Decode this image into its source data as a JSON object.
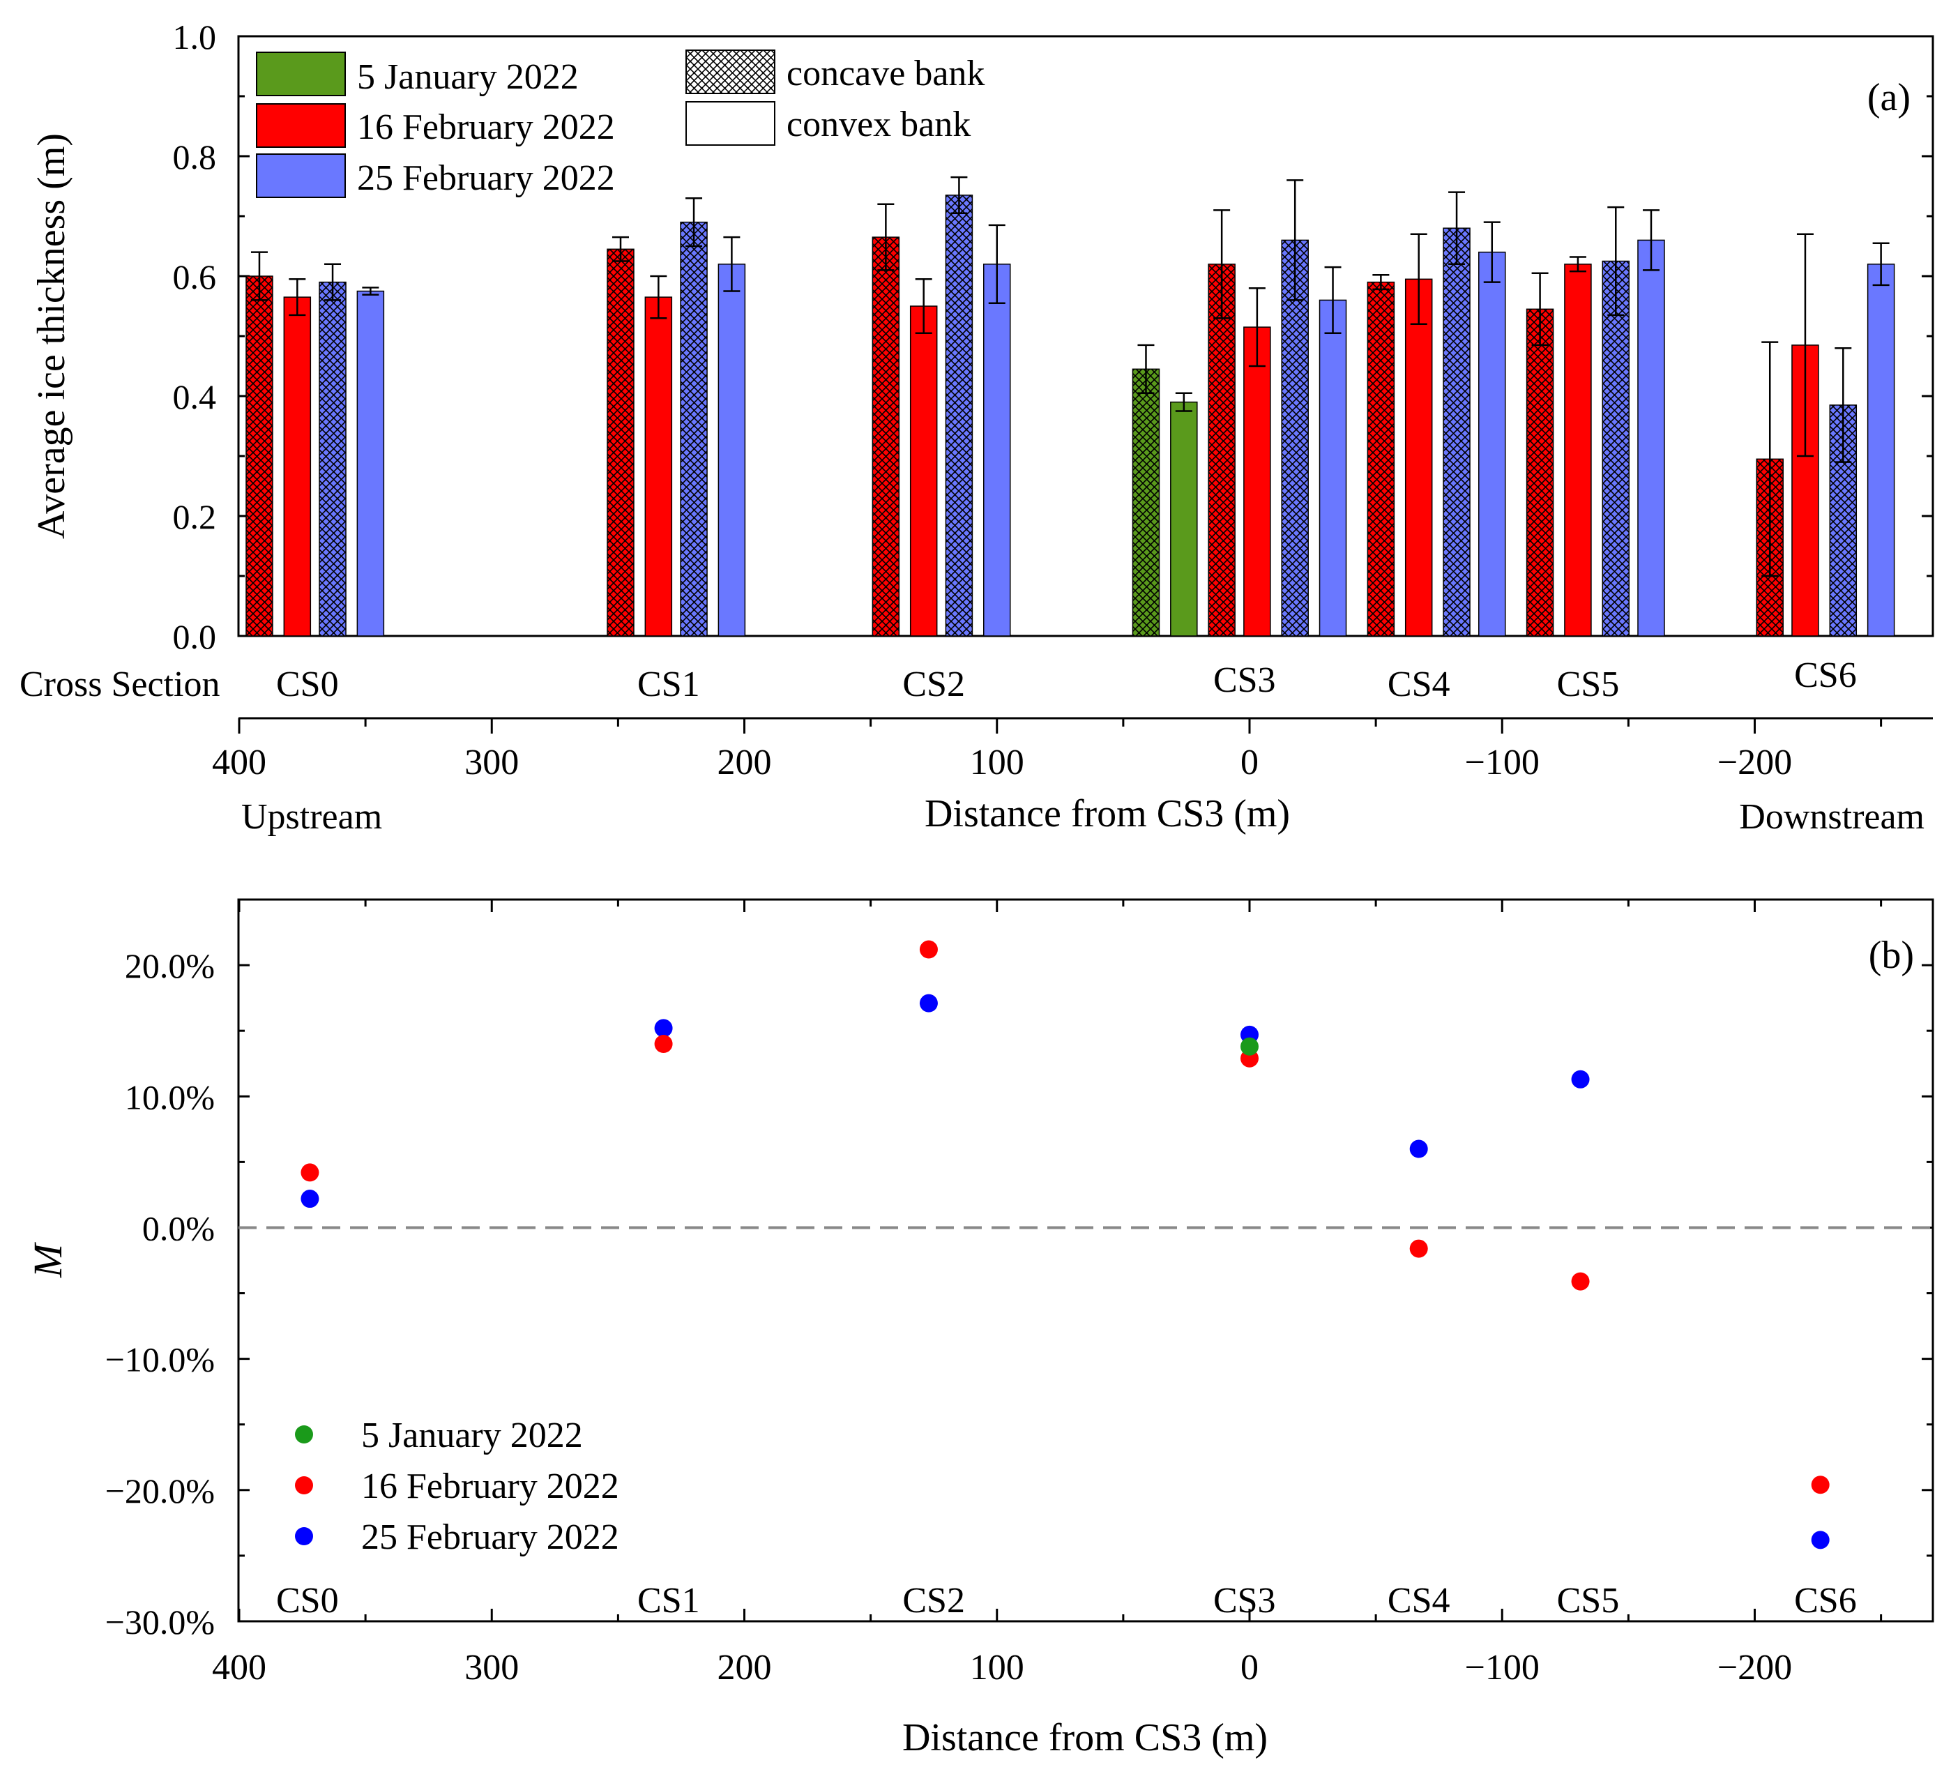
{
  "colors": {
    "jan": "#5a9a1c",
    "feb16": "#ff0000",
    "feb25": "#6a78ff",
    "jan_dot": "#1a9a1a",
    "feb16_dot": "#ff0000",
    "feb25_dot": "#0000ff",
    "zero_line": "#888888"
  },
  "chart_data": [
    {
      "type": "bar",
      "panel_label": "(a)",
      "ylabel": "Average ice thickness (m)",
      "xlabel": "Distance from CS3 (m)",
      "x_left_label": "Upstream",
      "x_right_label": "Downstream",
      "cross_section_label": "Cross Section",
      "ylim": [
        0.0,
        1.0
      ],
      "xlim": [
        400,
        -270
      ],
      "y_ticks": [
        "0.0",
        "0.2",
        "0.4",
        "0.6",
        "0.8",
        "1.0"
      ],
      "x_ticks": [
        "400",
        "300",
        "200",
        "100",
        "0",
        "−100",
        "−200"
      ],
      "legend_series": [
        "5 January 2022",
        "16 February 2022",
        "25 February 2022"
      ],
      "legend_banks": [
        "concave bank",
        "convex bank"
      ],
      "cross_sections": [
        {
          "name": "CS0",
          "x": 373
        },
        {
          "name": "CS1",
          "x": 230
        },
        {
          "name": "CS2",
          "x": 125
        },
        {
          "name": "CS3",
          "x": 2
        },
        {
          "name": "CS4",
          "x": -67
        },
        {
          "name": "CS5",
          "x": -134
        },
        {
          "name": "CS6",
          "x": -228
        }
      ],
      "bars": [
        {
          "section": "CS0",
          "x": 392,
          "date": "16 February 2022",
          "bank": "concave",
          "value": 0.6,
          "err": 0.04
        },
        {
          "section": "CS0",
          "x": 377,
          "date": "16 February 2022",
          "bank": "convex",
          "value": 0.565,
          "err": 0.03
        },
        {
          "section": "CS0",
          "x": 363,
          "date": "25 February 2022",
          "bank": "concave",
          "value": 0.59,
          "err": 0.03
        },
        {
          "section": "CS0",
          "x": 348,
          "date": "25 February 2022",
          "bank": "convex",
          "value": 0.575,
          "err": 0.006
        },
        {
          "section": "CS1",
          "x": 249,
          "date": "16 February 2022",
          "bank": "concave",
          "value": 0.645,
          "err": 0.02
        },
        {
          "section": "CS1",
          "x": 234,
          "date": "16 February 2022",
          "bank": "convex",
          "value": 0.565,
          "err": 0.035
        },
        {
          "section": "CS1",
          "x": 220,
          "date": "25 February 2022",
          "bank": "concave",
          "value": 0.69,
          "err": 0.04
        },
        {
          "section": "CS1",
          "x": 205,
          "date": "25 February 2022",
          "bank": "convex",
          "value": 0.62,
          "err": 0.045
        },
        {
          "section": "CS2",
          "x": 144,
          "date": "16 February 2022",
          "bank": "concave",
          "value": 0.665,
          "err": 0.055
        },
        {
          "section": "CS2",
          "x": 129,
          "date": "16 February 2022",
          "bank": "convex",
          "value": 0.55,
          "err": 0.045
        },
        {
          "section": "CS2",
          "x": 115,
          "date": "25 February 2022",
          "bank": "concave",
          "value": 0.735,
          "err": 0.03
        },
        {
          "section": "CS2",
          "x": 100,
          "date": "25 February 2022",
          "bank": "convex",
          "value": 0.62,
          "err": 0.065
        },
        {
          "section": "CS3",
          "x": 41,
          "date": "5 January 2022",
          "bank": "concave",
          "value": 0.445,
          "err": 0.04
        },
        {
          "section": "CS3",
          "x": 26,
          "date": "5 January 2022",
          "bank": "convex",
          "value": 0.39,
          "err": 0.015
        },
        {
          "section": "CS3",
          "x": 11,
          "date": "16 February 2022",
          "bank": "concave",
          "value": 0.62,
          "err": 0.09
        },
        {
          "section": "CS3",
          "x": -3,
          "date": "16 February 2022",
          "bank": "convex",
          "value": 0.515,
          "err": 0.065
        },
        {
          "section": "CS3",
          "x": -18,
          "date": "25 February 2022",
          "bank": "concave",
          "value": 0.66,
          "err": 0.1
        },
        {
          "section": "CS3",
          "x": -33,
          "date": "25 February 2022",
          "bank": "convex",
          "value": 0.56,
          "err": 0.055
        },
        {
          "section": "CS4",
          "x": -52,
          "date": "16 February 2022",
          "bank": "concave",
          "value": 0.59,
          "err": 0.012
        },
        {
          "section": "CS4",
          "x": -67,
          "date": "16 February 2022",
          "bank": "convex",
          "value": 0.595,
          "err": 0.075
        },
        {
          "section": "CS4",
          "x": -82,
          "date": "25 February 2022",
          "bank": "concave",
          "value": 0.68,
          "err": 0.06
        },
        {
          "section": "CS4",
          "x": -96,
          "date": "25 February 2022",
          "bank": "convex",
          "value": 0.64,
          "err": 0.05
        },
        {
          "section": "CS5",
          "x": -115,
          "date": "16 February 2022",
          "bank": "concave",
          "value": 0.545,
          "err": 0.06
        },
        {
          "section": "CS5",
          "x": -130,
          "date": "16 February 2022",
          "bank": "convex",
          "value": 0.62,
          "err": 0.012
        },
        {
          "section": "CS5",
          "x": -145,
          "date": "25 February 2022",
          "bank": "concave",
          "value": 0.625,
          "err": 0.09
        },
        {
          "section": "CS5",
          "x": -159,
          "date": "25 February 2022",
          "bank": "convex",
          "value": 0.66,
          "err": 0.05
        },
        {
          "section": "CS6",
          "x": -206,
          "date": "16 February 2022",
          "bank": "concave",
          "value": 0.295,
          "err": 0.195
        },
        {
          "section": "CS6",
          "x": -220,
          "date": "16 February 2022",
          "bank": "convex",
          "value": 0.485,
          "err": 0.185
        },
        {
          "section": "CS6",
          "x": -235,
          "date": "25 February 2022",
          "bank": "concave",
          "value": 0.385,
          "err": 0.095
        },
        {
          "section": "CS6",
          "x": -250,
          "date": "25 February 2022",
          "bank": "convex",
          "value": 0.62,
          "err": 0.035
        }
      ]
    },
    {
      "type": "scatter",
      "panel_label": "(b)",
      "ylabel": "M",
      "xlabel": "Distance from CS3 (m)",
      "ylim": [
        -30,
        25
      ],
      "xlim": [
        400,
        -270
      ],
      "y_ticks": [
        "20.0%",
        "10.0%",
        "0.0%",
        "−10.0%",
        "−20.0%",
        "−30.0%"
      ],
      "x_ticks": [
        "400",
        "300",
        "200",
        "100",
        "0",
        "−100",
        "−200"
      ],
      "reference_line_y": 0,
      "cross_sections": [
        "CS0",
        "CS1",
        "CS2",
        "CS3",
        "CS4",
        "CS5",
        "CS6"
      ],
      "series": [
        {
          "name": "5 January 2022",
          "points": [
            {
              "x": 0,
              "y": 13.8
            }
          ]
        },
        {
          "name": "16 February 2022",
          "points": [
            {
              "x": 372,
              "y": 4.2
            },
            {
              "x": 232,
              "y": 14.0
            },
            {
              "x": 127,
              "y": 21.2
            },
            {
              "x": 0,
              "y": 12.9
            },
            {
              "x": -67,
              "y": -1.6
            },
            {
              "x": -131,
              "y": -4.1
            },
            {
              "x": -226,
              "y": -19.6
            }
          ]
        },
        {
          "name": "25 February 2022",
          "points": [
            {
              "x": 372,
              "y": 2.2
            },
            {
              "x": 232,
              "y": 15.2
            },
            {
              "x": 127,
              "y": 17.1
            },
            {
              "x": 0,
              "y": 14.7
            },
            {
              "x": -67,
              "y": 6.0
            },
            {
              "x": -131,
              "y": 11.3
            },
            {
              "x": -226,
              "y": -23.8
            }
          ]
        }
      ],
      "legend": [
        "5 January 2022",
        "16 February 2022",
        "25 February 2022"
      ]
    }
  ]
}
